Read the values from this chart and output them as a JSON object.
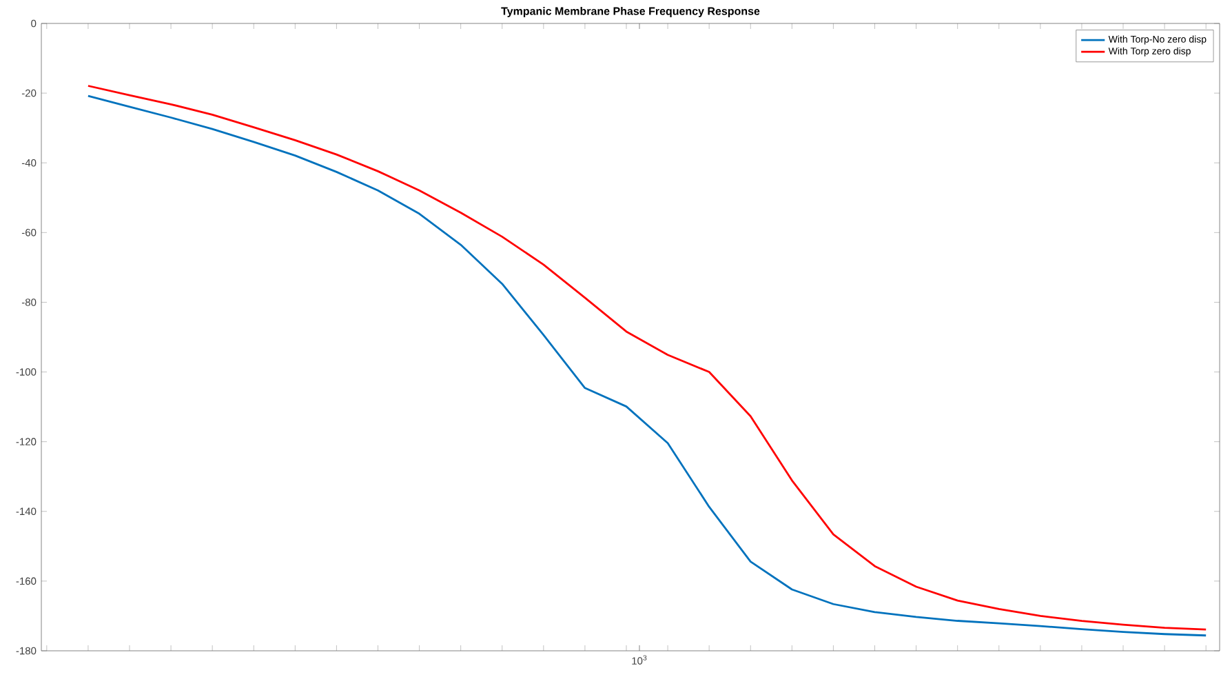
{
  "chart_data": {
    "type": "line",
    "title": "Tympanic Membrane Phase Frequency Response",
    "annotations": [
      "10$^{3}$"
    ],
    "categories": [
      null,
      null,
      null,
      null,
      null,
      null,
      null,
      null,
      null,
      null,
      null,
      null,
      null,
      null,
      null,
      null,
      null,
      null,
      null,
      null,
      null,
      null,
      null,
      null,
      null,
      null,
      null,
      null
    ],
    "ylim": [
      -180,
      0
    ],
    "yticks": [
      -180,
      -160,
      -140,
      -120,
      -100,
      -80,
      -60,
      -40,
      -20,
      0
    ],
    "grid": false,
    "legend": "top right",
    "line_style": "solid",
    "marker": "none",
    "series": [
      {
        "name": "With Torp-No zero disp",
        "color": "#0072bd",
        "values": [
          -20.8,
          -23.9,
          -27,
          -30.3,
          -34,
          -37.9,
          -42.6,
          -47.9,
          -54.6,
          -63.5,
          -74.7,
          -89.4,
          -104.6,
          -109.9,
          -120.4,
          -138.7,
          -154.4,
          -162.4,
          -166.6,
          -168.9,
          -170.3,
          -171.4,
          -172.1,
          -172.9,
          -173.8,
          -174.6,
          -175.2,
          -175.6
        ]
      },
      {
        "name": "With Torp zero disp",
        "color": "#ff0000",
        "values": [
          -17.9,
          -20.6,
          -23.2,
          -26.2,
          -29.8,
          -33.5,
          -37.6,
          -42.4,
          -47.9,
          -54.3,
          -61.2,
          -69.2,
          -78.7,
          -88.4,
          -95.1,
          -100,
          -112.7,
          -131.1,
          -146.6,
          -155.7,
          -161.6,
          -165.6,
          -168,
          -170,
          -171.4,
          -172.5,
          -173.4,
          -173.9
        ]
      }
    ]
  }
}
